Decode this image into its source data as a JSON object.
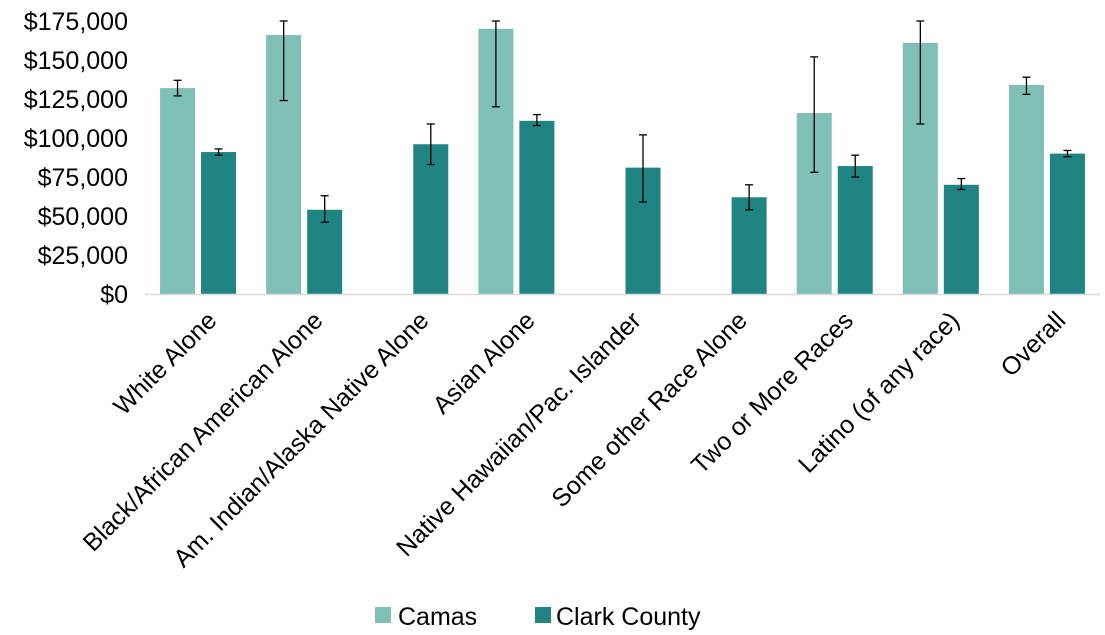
{
  "chart_data": {
    "type": "bar",
    "title": "",
    "xlabel": "",
    "ylabel": "",
    "ylim": [
      0,
      175000
    ],
    "y_ticks": [
      {
        "value": 0,
        "label": "$0"
      },
      {
        "value": 25000,
        "label": "$25,000"
      },
      {
        "value": 50000,
        "label": "$50,000"
      },
      {
        "value": 75000,
        "label": "$75,000"
      },
      {
        "value": 100000,
        "label": "$100,000"
      },
      {
        "value": 125000,
        "label": "$125,000"
      },
      {
        "value": 150000,
        "label": "$150,000"
      },
      {
        "value": 175000,
        "label": "$175,000"
      }
    ],
    "grid": false,
    "error_bars": true,
    "legend_position": "bottom",
    "categories": [
      "White Alone",
      "Black/African American Alone",
      "Am. Indian/Alaska Native Alone",
      "Asian Alone",
      "Native Hawaiian/Pac. Islander",
      "Some other Race Alone",
      "Two or More Races",
      "Latino (of any race)",
      "Overall"
    ],
    "series": [
      {
        "name": "Camas",
        "color": "#7fbfb5",
        "values": [
          132000,
          166000,
          null,
          170000,
          null,
          null,
          116000,
          161000,
          134000
        ],
        "error_low": [
          127000,
          124000,
          null,
          120000,
          null,
          null,
          78000,
          109000,
          128000
        ],
        "error_high": [
          137000,
          175000,
          null,
          175000,
          null,
          null,
          152000,
          175000,
          139000
        ]
      },
      {
        "name": "Clark County",
        "color": "#208483",
        "values": [
          91000,
          54000,
          96000,
          111000,
          81000,
          62000,
          82000,
          70000,
          90000
        ],
        "error_low": [
          89000,
          46000,
          83000,
          108000,
          59000,
          54000,
          75000,
          67000,
          88000
        ],
        "error_high": [
          93000,
          63000,
          109000,
          115000,
          102000,
          70000,
          89000,
          74000,
          92000
        ]
      }
    ]
  }
}
